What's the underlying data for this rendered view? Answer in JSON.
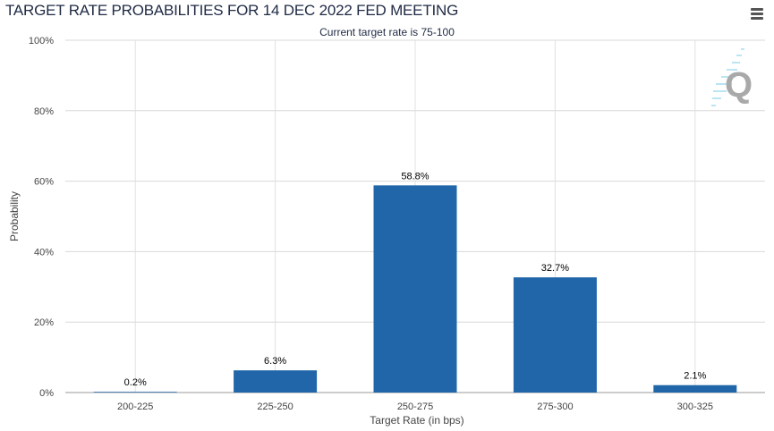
{
  "header": {
    "title": "TARGET RATE PROBABILITIES FOR 14 DEC 2022 FED MEETING",
    "menu_icon": "hamburger-menu-icon"
  },
  "chart_data": {
    "type": "bar",
    "title": "TARGET RATE PROBABILITIES FOR 14 DEC 2022 FED MEETING",
    "subtitle": "Current target rate is 75-100",
    "categories": [
      "200-225",
      "225-250",
      "250-275",
      "275-300",
      "300-325"
    ],
    "values": [
      0.2,
      6.3,
      58.8,
      32.7,
      2.1
    ],
    "data_labels": [
      "0.2%",
      "6.3%",
      "58.8%",
      "32.7%",
      "2.1%"
    ],
    "xlabel": "Target Rate (in bps)",
    "ylabel": "Probability",
    "ylim": [
      0,
      100
    ],
    "yticks": [
      0,
      20,
      40,
      60,
      80,
      100
    ],
    "ytick_labels": [
      "0%",
      "20%",
      "40%",
      "60%",
      "80%",
      "100%"
    ],
    "grid": true,
    "bar_color": "#2066a8"
  }
}
